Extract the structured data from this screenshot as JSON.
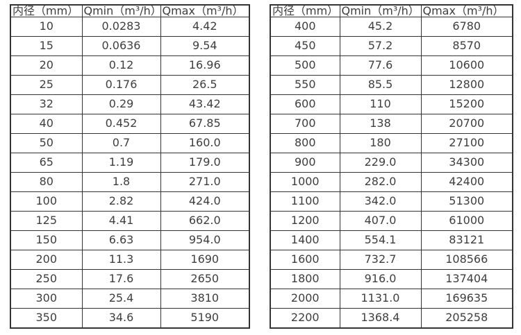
{
  "colors": {
    "background": "#ffffff",
    "text": "#3e3e3e",
    "border": "#333333"
  },
  "chart_data": [
    {
      "type": "table",
      "title": "",
      "columns": [
        "内径（mm）",
        "Qmin（m³/h）",
        "Qmax（m³/h）"
      ],
      "rows": [
        [
          "10",
          "0.0283",
          "4.42"
        ],
        [
          "15",
          "0.0636",
          "9.54"
        ],
        [
          "20",
          "0.12",
          "16.96"
        ],
        [
          "25",
          "0.176",
          "26.5"
        ],
        [
          "32",
          "0.29",
          "43.42"
        ],
        [
          "40",
          "0.452",
          "67.85"
        ],
        [
          "50",
          "0.7",
          "160.0"
        ],
        [
          "65",
          "1.19",
          "179.0"
        ],
        [
          "80",
          "1.8",
          "271.0"
        ],
        [
          "100",
          "2.82",
          "424.0"
        ],
        [
          "125",
          "4.41",
          "662.0"
        ],
        [
          "150",
          "6.63",
          "954.0"
        ],
        [
          "200",
          "11.3",
          "1690"
        ],
        [
          "250",
          "17.6",
          "2650"
        ],
        [
          "300",
          "25.4",
          "3810"
        ],
        [
          "350",
          "34.6",
          "5190"
        ]
      ]
    },
    {
      "type": "table",
      "title": "",
      "columns": [
        "内径（mm）",
        "Qmin（m³/h）",
        "Qmax（m³/h）"
      ],
      "rows": [
        [
          "400",
          "45.2",
          "6780"
        ],
        [
          "450",
          "57.2",
          "8570"
        ],
        [
          "500",
          "77.6",
          "10600"
        ],
        [
          "550",
          "85.5",
          "12800"
        ],
        [
          "600",
          "110",
          "15200"
        ],
        [
          "700",
          "138",
          "20700"
        ],
        [
          "800",
          "180",
          "27100"
        ],
        [
          "900",
          "229.0",
          "34300"
        ],
        [
          "1000",
          "282.0",
          "42400"
        ],
        [
          "1100",
          "342.0",
          "51300"
        ],
        [
          "1200",
          "407.0",
          "61000"
        ],
        [
          "1400",
          "554.1",
          "83121"
        ],
        [
          "1600",
          "732.7",
          "108566"
        ],
        [
          "1800",
          "916.0",
          "137404"
        ],
        [
          "2000",
          "1131.0",
          "169635"
        ],
        [
          "2200",
          "1368.4",
          "205258"
        ]
      ]
    }
  ]
}
